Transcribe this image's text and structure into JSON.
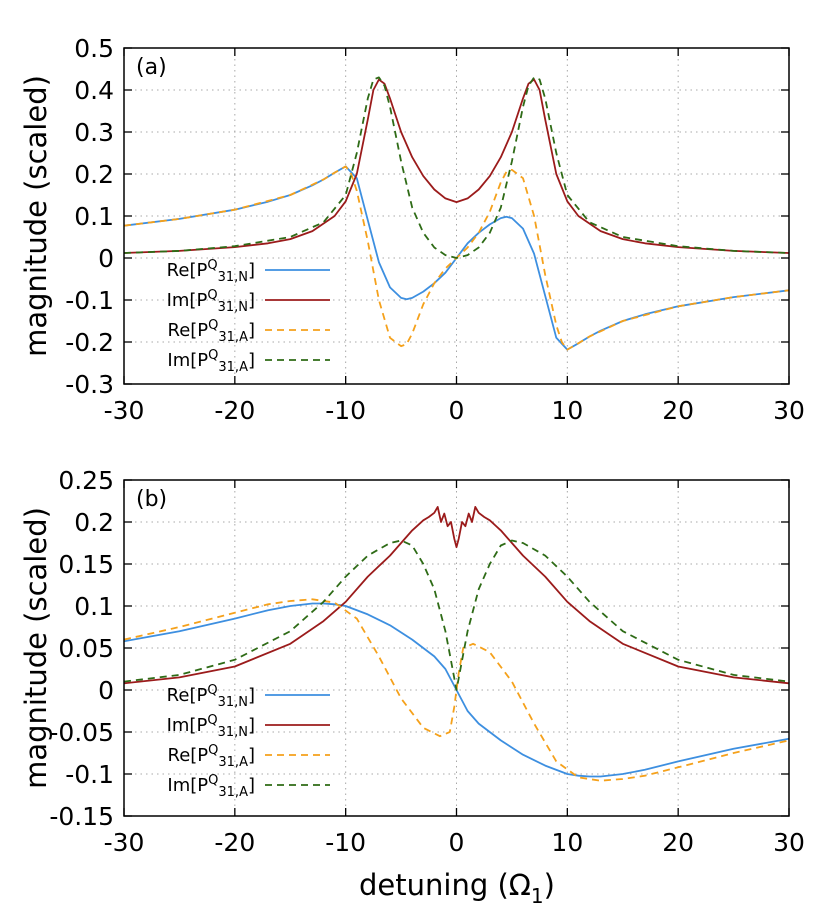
{
  "figure": {
    "xlabel": "detuning (Ω",
    "xlabel_sub": "1",
    "xlabel_close": ")"
  },
  "colors": {
    "Re_N": "#3d8fe0",
    "Im_N": "#9b1b1b",
    "Re_A": "#f5a11b",
    "Im_A": "#2e6b16"
  },
  "chart_data": [
    {
      "type": "line",
      "panel_label": "(a)",
      "ylabel": "magnitude (scaled)",
      "xlim": [
        -30,
        30
      ],
      "ylim": [
        -0.3,
        0.5
      ],
      "xticks": [
        "-30",
        "-20",
        "-10",
        "0",
        "10",
        "20",
        "30"
      ],
      "yticks": [
        "-0.3",
        "-0.2",
        "-0.1",
        "0",
        "0.1",
        "0.2",
        "0.3",
        "0.4",
        "0.5"
      ],
      "grid": true,
      "legend_position": "lower-left",
      "series": [
        {
          "name": "Re[P^Q_31,N]",
          "label_main": "Re[P",
          "label_sup": "Q",
          "label_sub": "31,N",
          "label_close": "]",
          "color": "#3d8fe0",
          "dash": "solid",
          "x": [
            -30,
            -25,
            -20,
            -17,
            -15,
            -13,
            -12,
            -11,
            -10,
            -9,
            -8,
            -7,
            -6,
            -5,
            -4.5,
            -4,
            -3,
            -2,
            -1,
            0,
            1,
            2,
            3,
            4,
            4.5,
            5,
            6,
            7,
            8,
            9,
            10,
            11,
            12,
            13,
            15,
            17,
            20,
            25,
            30
          ],
          "y": [
            0.077,
            0.093,
            0.115,
            0.134,
            0.15,
            0.173,
            0.187,
            0.203,
            0.218,
            0.19,
            0.09,
            -0.01,
            -0.07,
            -0.095,
            -0.098,
            -0.095,
            -0.08,
            -0.06,
            -0.035,
            0.0,
            0.035,
            0.06,
            0.08,
            0.095,
            0.098,
            0.095,
            0.07,
            0.01,
            -0.09,
            -0.19,
            -0.218,
            -0.203,
            -0.187,
            -0.173,
            -0.15,
            -0.134,
            -0.115,
            -0.093,
            -0.077
          ]
        },
        {
          "name": "Im[P^Q_31,N]",
          "label_main": "Im[P",
          "label_sup": "Q",
          "label_sub": "31,N",
          "label_close": "]",
          "color": "#9b1b1b",
          "dash": "solid",
          "x": [
            -30,
            -25,
            -20,
            -17,
            -15,
            -13,
            -11,
            -10,
            -9,
            -8,
            -7.5,
            -7,
            -6.5,
            -6,
            -5,
            -4,
            -3,
            -2,
            -1,
            0,
            1,
            2,
            3,
            4,
            5,
            6,
            6.5,
            7,
            7.5,
            8,
            9,
            10,
            11,
            13,
            15,
            17,
            20,
            25,
            30
          ],
          "y": [
            0.012,
            0.017,
            0.026,
            0.035,
            0.045,
            0.064,
            0.1,
            0.135,
            0.2,
            0.33,
            0.4,
            0.425,
            0.415,
            0.38,
            0.3,
            0.24,
            0.195,
            0.163,
            0.142,
            0.133,
            0.142,
            0.163,
            0.195,
            0.24,
            0.3,
            0.38,
            0.415,
            0.425,
            0.4,
            0.33,
            0.2,
            0.135,
            0.1,
            0.064,
            0.045,
            0.035,
            0.026,
            0.017,
            0.012
          ]
        },
        {
          "name": "Re[P^Q_31,A]",
          "label_main": "Re[P",
          "label_sup": "Q",
          "label_sub": "31,A",
          "label_close": "]",
          "color": "#f5a11b",
          "dash": "dashed",
          "x": [
            -30,
            -25,
            -20,
            -15,
            -12,
            -11,
            -10,
            -9.5,
            -9,
            -8,
            -7,
            -6,
            -5,
            -4.5,
            -4,
            -3,
            -2,
            -1,
            0,
            1,
            2,
            3,
            4,
            4.5,
            5,
            6,
            7,
            8,
            9,
            9.5,
            10,
            11,
            12,
            15,
            20,
            25,
            30
          ],
          "y": [
            0.077,
            0.093,
            0.115,
            0.15,
            0.187,
            0.203,
            0.218,
            0.2,
            0.16,
            0.04,
            -0.1,
            -0.19,
            -0.21,
            -0.205,
            -0.18,
            -0.11,
            -0.06,
            -0.025,
            0.0,
            0.025,
            0.06,
            0.11,
            0.18,
            0.205,
            0.21,
            0.19,
            0.1,
            -0.04,
            -0.16,
            -0.2,
            -0.218,
            -0.203,
            -0.187,
            -0.15,
            -0.115,
            -0.093,
            -0.077
          ]
        },
        {
          "name": "Im[P^Q_31,A]",
          "label_main": "Im[P",
          "label_sup": "Q",
          "label_sub": "31,A",
          "label_close": "]",
          "color": "#2e6b16",
          "dash": "dashed",
          "x": [
            -30,
            -25,
            -20,
            -15,
            -12,
            -10,
            -9,
            -8,
            -7.5,
            -7,
            -6.5,
            -6,
            -5,
            -4,
            -3,
            -2,
            -1,
            0,
            1,
            2,
            3,
            4,
            5,
            6,
            6.5,
            7,
            7.5,
            8,
            9,
            10,
            12,
            15,
            20,
            25,
            30
          ],
          "y": [
            0.012,
            0.017,
            0.028,
            0.05,
            0.085,
            0.15,
            0.25,
            0.38,
            0.425,
            0.43,
            0.41,
            0.36,
            0.23,
            0.12,
            0.06,
            0.025,
            0.007,
            0.0,
            0.007,
            0.025,
            0.06,
            0.12,
            0.23,
            0.36,
            0.41,
            0.43,
            0.425,
            0.38,
            0.25,
            0.15,
            0.085,
            0.05,
            0.028,
            0.017,
            0.012
          ]
        }
      ]
    },
    {
      "type": "line",
      "panel_label": "(b)",
      "ylabel": "magnitude (scaled)",
      "xlim": [
        -30,
        30
      ],
      "ylim": [
        -0.15,
        0.25
      ],
      "xticks": [
        "-30",
        "-20",
        "-10",
        "0",
        "10",
        "20",
        "30"
      ],
      "yticks": [
        "-0.15",
        "-0.1",
        "-0.05",
        "0",
        "0.05",
        "0.1",
        "0.15",
        "0.2",
        "0.25"
      ],
      "grid": true,
      "legend_position": "lower-left",
      "series": [
        {
          "name": "Re[P^Q_31,N]",
          "label_main": "Re[P",
          "label_sup": "Q",
          "label_sub": "31,N",
          "label_close": "]",
          "color": "#3d8fe0",
          "dash": "solid",
          "x": [
            -30,
            -25,
            -20,
            -17,
            -15,
            -13,
            -12,
            -11,
            -10,
            -8,
            -6,
            -4,
            -2,
            -1,
            0,
            1,
            2,
            4,
            6,
            8,
            10,
            11,
            12,
            13,
            15,
            17,
            20,
            25,
            30
          ],
          "y": [
            0.058,
            0.07,
            0.085,
            0.095,
            0.1,
            0.103,
            0.103,
            0.102,
            0.1,
            0.09,
            0.077,
            0.06,
            0.04,
            0.025,
            0.0,
            -0.025,
            -0.04,
            -0.06,
            -0.077,
            -0.09,
            -0.1,
            -0.102,
            -0.103,
            -0.103,
            -0.1,
            -0.095,
            -0.085,
            -0.07,
            -0.058
          ]
        },
        {
          "name": "Im[P^Q_31,N]",
          "label_main": "Im[P",
          "label_sup": "Q",
          "label_sub": "31,N",
          "label_close": "]",
          "color": "#9b1b1b",
          "dash": "solid",
          "x": [
            -30,
            -25,
            -20,
            -15,
            -12,
            -10,
            -8,
            -6,
            -5,
            -4,
            -3.5,
            -3,
            -2.5,
            -2,
            -1.7,
            -1.4,
            -1.1,
            -0.8,
            -0.5,
            -0.2,
            0,
            0.2,
            0.5,
            0.8,
            1.1,
            1.4,
            1.7,
            2,
            2.5,
            3,
            3.5,
            4,
            5,
            6,
            8,
            10,
            12,
            15,
            20,
            25,
            30
          ],
          "y": [
            0.008,
            0.015,
            0.028,
            0.055,
            0.082,
            0.105,
            0.135,
            0.16,
            0.175,
            0.19,
            0.196,
            0.202,
            0.206,
            0.211,
            0.218,
            0.2,
            0.21,
            0.195,
            0.2,
            0.18,
            0.17,
            0.18,
            0.2,
            0.195,
            0.21,
            0.2,
            0.218,
            0.211,
            0.206,
            0.202,
            0.196,
            0.19,
            0.175,
            0.16,
            0.135,
            0.105,
            0.082,
            0.055,
            0.028,
            0.015,
            0.008
          ]
        },
        {
          "name": "Re[P^Q_31,A]",
          "label_main": "Re[P",
          "label_sup": "Q",
          "label_sub": "31,A",
          "label_close": "]",
          "color": "#f5a11b",
          "dash": "dashed",
          "x": [
            -30,
            -25,
            -20,
            -17,
            -15,
            -13,
            -11,
            -9,
            -7,
            -5,
            -3,
            -1.5,
            -0.6,
            -0.2,
            0,
            0.2,
            0.6,
            1.5,
            3,
            5,
            7,
            9,
            11,
            13,
            15,
            17,
            20,
            25,
            30
          ],
          "y": [
            0.06,
            0.075,
            0.092,
            0.102,
            0.106,
            0.108,
            0.104,
            0.085,
            0.04,
            -0.01,
            -0.045,
            -0.055,
            -0.05,
            -0.02,
            0.0,
            0.02,
            0.05,
            0.055,
            0.045,
            0.01,
            -0.04,
            -0.085,
            -0.104,
            -0.108,
            -0.106,
            -0.102,
            -0.092,
            -0.075,
            -0.06
          ]
        },
        {
          "name": "Im[P^Q_31,A]",
          "label_main": "Im[P",
          "label_sup": "Q",
          "label_sub": "31,A",
          "label_close": "]",
          "color": "#2e6b16",
          "dash": "dashed",
          "x": [
            -30,
            -25,
            -20,
            -15,
            -12,
            -10,
            -8,
            -6,
            -5,
            -4,
            -3,
            -2,
            -1,
            -0.5,
            0,
            0.5,
            1,
            2,
            3,
            4,
            5,
            6,
            8,
            10,
            12,
            15,
            20,
            25,
            30
          ],
          "y": [
            0.01,
            0.018,
            0.036,
            0.07,
            0.105,
            0.135,
            0.16,
            0.175,
            0.178,
            0.172,
            0.15,
            0.12,
            0.07,
            0.035,
            0.0,
            0.035,
            0.07,
            0.12,
            0.15,
            0.172,
            0.178,
            0.175,
            0.16,
            0.135,
            0.105,
            0.07,
            0.036,
            0.018,
            0.01
          ]
        }
      ]
    }
  ]
}
